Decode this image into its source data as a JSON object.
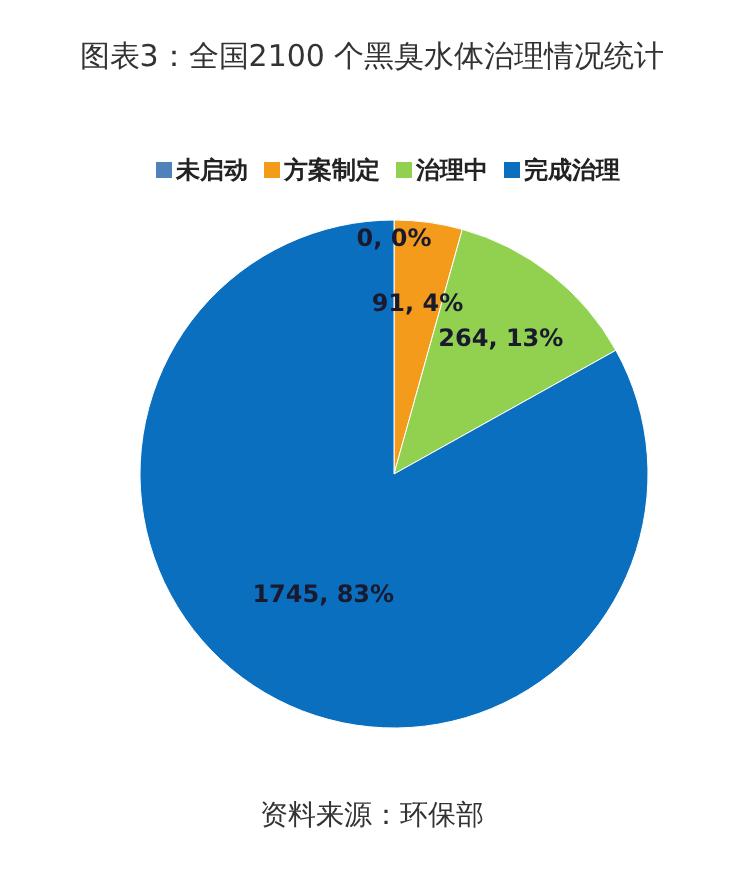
{
  "chart_data": {
    "type": "pie",
    "title": "图表3：全国2100 个黑臭水体治理情况统计",
    "categories": [
      "未启动",
      "方案制定",
      "治理中",
      "完成治理"
    ],
    "values": [
      0,
      91,
      264,
      1745
    ],
    "colors": [
      "#4f81bd",
      "#f59b1c",
      "#92d050",
      "#0b6fc0"
    ],
    "value_labels": [
      "0, 0%",
      "91, 4%",
      "264, 13%",
      "1745, 83%"
    ],
    "legend": "top",
    "annotations": [
      "资料来源：环保部"
    ]
  }
}
